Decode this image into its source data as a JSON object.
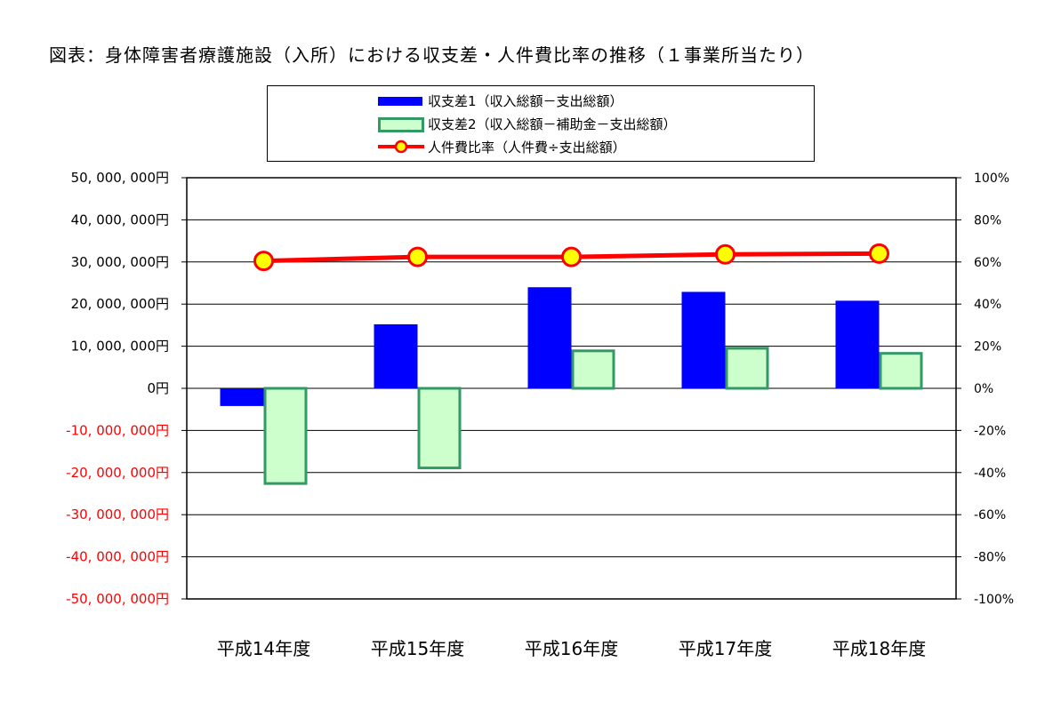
{
  "title": "図表：身体障害者療護施設（入所）における収支差・人件費比率の推移（１事業所当たり）",
  "legend": [
    {
      "key": "s1",
      "label": "収支差1（収入総額－支出総額）"
    },
    {
      "key": "s2",
      "label": "収支差2（収入総額－補助金－支出総額）"
    },
    {
      "key": "s3",
      "label": "人件費比率（人件費÷支出総額）"
    }
  ],
  "colors": {
    "s1_fill": "#0000ff",
    "s2_fill": "#ccffcc",
    "s2_border": "#339966",
    "line": "#ff0000",
    "marker_fill": "#ffff00",
    "negative_label": "#ff0000"
  },
  "chart_data": {
    "type": "bar",
    "categories": [
      "平成14年度",
      "平成15年度",
      "平成16年度",
      "平成17年度",
      "平成18年度"
    ],
    "series": [
      {
        "name": "収支差1（収入総額－支出総額）",
        "type": "bar",
        "axis": "left",
        "values": [
          -4200000,
          15200000,
          24000000,
          22900000,
          20800000
        ]
      },
      {
        "name": "収支差2（収入総額－補助金－支出総額）",
        "type": "bar",
        "axis": "left",
        "values": [
          -22600000,
          -18900000,
          8900000,
          9500000,
          8300000
        ]
      },
      {
        "name": "人件費比率（人件費÷支出総額）",
        "type": "line",
        "axis": "right",
        "values": [
          60.5,
          62.4,
          62.4,
          63.6,
          64.0
        ]
      }
    ],
    "ylim_left": [
      -50000000,
      50000000
    ],
    "ylim_right": [
      -100,
      100
    ],
    "y_left_ticks": [
      "50, 000, 000円",
      "40, 000, 000円",
      "30, 000, 000円",
      "20, 000, 000円",
      "10, 000, 000円",
      "0円",
      "-10, 000, 000円",
      "-20, 000, 000円",
      "-30, 000, 000円",
      "-40, 000, 000円",
      "-50, 000, 000円"
    ],
    "y_right_ticks": [
      "100%",
      "80%",
      "60%",
      "40%",
      "20%",
      "0%",
      "-20%",
      "-40%",
      "-60%",
      "-80%",
      "-100%"
    ],
    "grid": true,
    "legend_position": "top"
  }
}
